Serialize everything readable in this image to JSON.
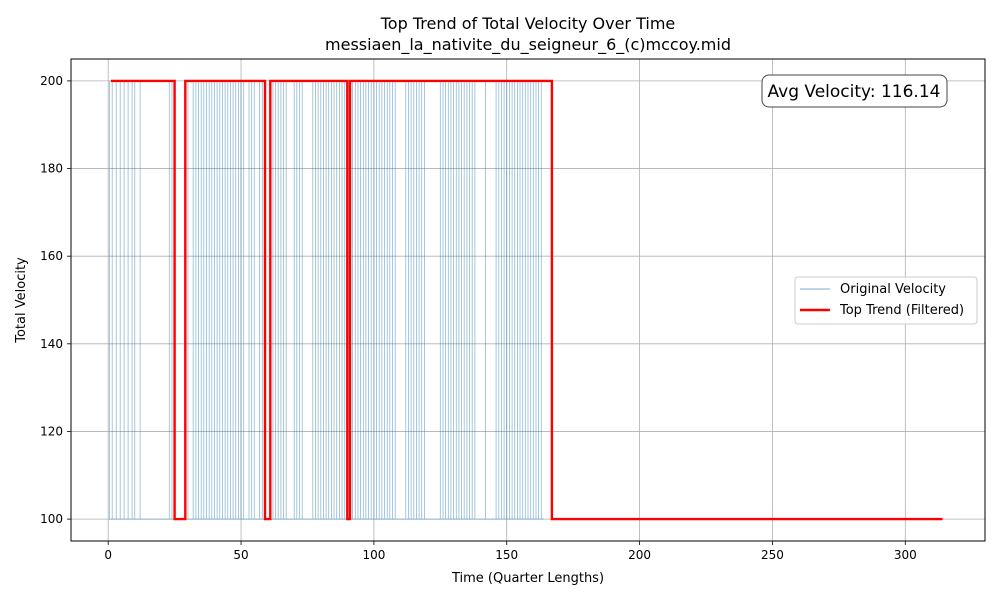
{
  "chart_data": {
    "type": "line",
    "title": "Top Trend of Total Velocity Over Time",
    "subtitle": "messiaen_la_nativite_du_seigneur_6_(c)mccoy.mid",
    "xlabel": "Time (Quarter Lengths)",
    "ylabel": "Total Velocity",
    "xlim": [
      -14,
      330
    ],
    "ylim": [
      95,
      205
    ],
    "xticks": [
      0,
      50,
      100,
      150,
      200,
      250,
      300
    ],
    "yticks": [
      100,
      120,
      140,
      160,
      180,
      200
    ],
    "grid": true,
    "legend_position": "center-right",
    "annotation": "Avg Velocity: 116.14",
    "series": [
      {
        "name": "Original Velocity",
        "color": "#1f77b4",
        "style": "thin",
        "spike_times": [
          0.5,
          1.5,
          3,
          4.5,
          6,
          7.5,
          9,
          10,
          12,
          23,
          24,
          29,
          30,
          32,
          33,
          34,
          35,
          36,
          37,
          38,
          39,
          40,
          41,
          42,
          43,
          44,
          45,
          46,
          47,
          48,
          49,
          50,
          51,
          53,
          54,
          55,
          57,
          58,
          59,
          61,
          62,
          63,
          64,
          65,
          66,
          67,
          70,
          71,
          72,
          73,
          77,
          78,
          79,
          80,
          81,
          82,
          83,
          84,
          85,
          86,
          87,
          88,
          89,
          90,
          92,
          93,
          94,
          95,
          96,
          97,
          98,
          99,
          100,
          101,
          102,
          103,
          104,
          105,
          106,
          107,
          108,
          112,
          113,
          114,
          115,
          116,
          117,
          118,
          119,
          125,
          126,
          127,
          128,
          129,
          130,
          131,
          132,
          133,
          134,
          135,
          136,
          137,
          138,
          142,
          146,
          147,
          148,
          149,
          150,
          151,
          152,
          153,
          154,
          155,
          156,
          157,
          158,
          159,
          160,
          161,
          162,
          163
        ],
        "high": 200,
        "low": 100,
        "x_end": 164
      },
      {
        "name": "Top Trend (Filtered)",
        "color": "#ff0000",
        "style": "thick",
        "x": [
          1,
          25,
          25,
          29,
          29,
          59,
          59,
          61,
          61,
          90,
          90,
          91,
          91,
          167,
          167,
          314
        ],
        "y": [
          200,
          200,
          100,
          100,
          200,
          200,
          100,
          100,
          200,
          200,
          100,
          100,
          200,
          200,
          100,
          100
        ]
      }
    ]
  }
}
